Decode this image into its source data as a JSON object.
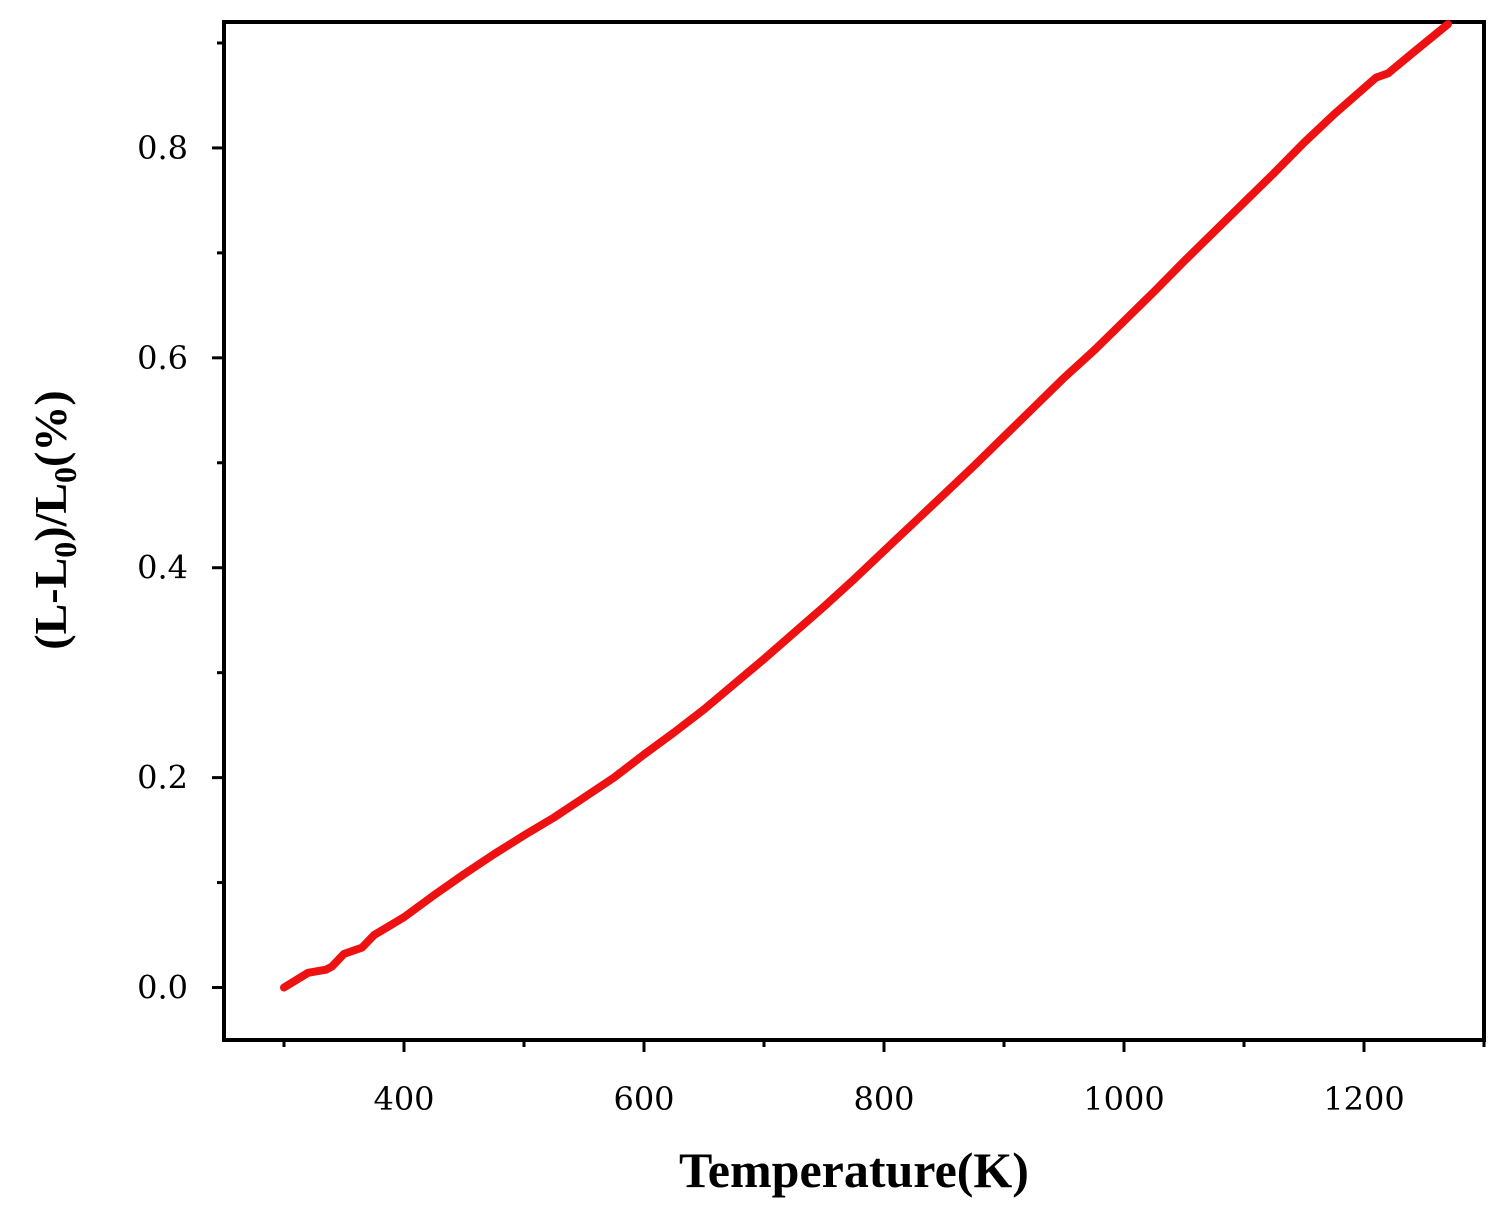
{
  "chart_data": {
    "type": "line",
    "title": "",
    "xlabel": "Temperature(K)",
    "ylabel": {
      "parts": [
        {
          "text": "(L-L"
        },
        {
          "text": "0",
          "sub": true
        },
        {
          "text": ")/L"
        },
        {
          "text": "0",
          "sub": true
        },
        {
          "text": "(%)"
        }
      ]
    },
    "xlim": [
      250,
      1300
    ],
    "ylim": [
      -0.05,
      0.92
    ],
    "x_ticks": [
      400,
      600,
      800,
      1000,
      1200
    ],
    "x_tick_labels": [
      "400",
      "600",
      "800",
      "1000",
      "1200"
    ],
    "x_minor_ticks": [
      300,
      500,
      700,
      900,
      1100,
      1300
    ],
    "y_ticks": [
      0.0,
      0.2,
      0.4,
      0.6,
      0.8
    ],
    "y_tick_labels": [
      "0.0",
      "0.2",
      "0.4",
      "0.6",
      "0.8"
    ],
    "y_minor_ticks": [
      0.1,
      0.3,
      0.5,
      0.7,
      0.9
    ],
    "grid": false,
    "legend": "none",
    "series": [
      {
        "color": "#ee1111",
        "x": [
          300,
          310,
          320,
          335,
          340,
          350,
          365,
          375,
          400,
          425,
          450,
          475,
          500,
          525,
          550,
          575,
          600,
          625,
          650,
          675,
          700,
          725,
          750,
          775,
          800,
          825,
          850,
          875,
          900,
          925,
          950,
          975,
          1000,
          1025,
          1050,
          1075,
          1100,
          1125,
          1150,
          1175,
          1200,
          1210,
          1220,
          1240,
          1270
        ],
        "y": [
          0.0,
          0.007,
          0.014,
          0.017,
          0.02,
          0.032,
          0.038,
          0.05,
          0.067,
          0.088,
          0.108,
          0.127,
          0.145,
          0.162,
          0.181,
          0.2,
          0.222,
          0.243,
          0.265,
          0.289,
          0.313,
          0.338,
          0.363,
          0.389,
          0.416,
          0.443,
          0.47,
          0.497,
          0.525,
          0.553,
          0.581,
          0.607,
          0.635,
          0.663,
          0.692,
          0.72,
          0.748,
          0.776,
          0.805,
          0.832,
          0.857,
          0.867,
          0.871,
          0.89,
          0.918
        ]
      }
    ]
  }
}
